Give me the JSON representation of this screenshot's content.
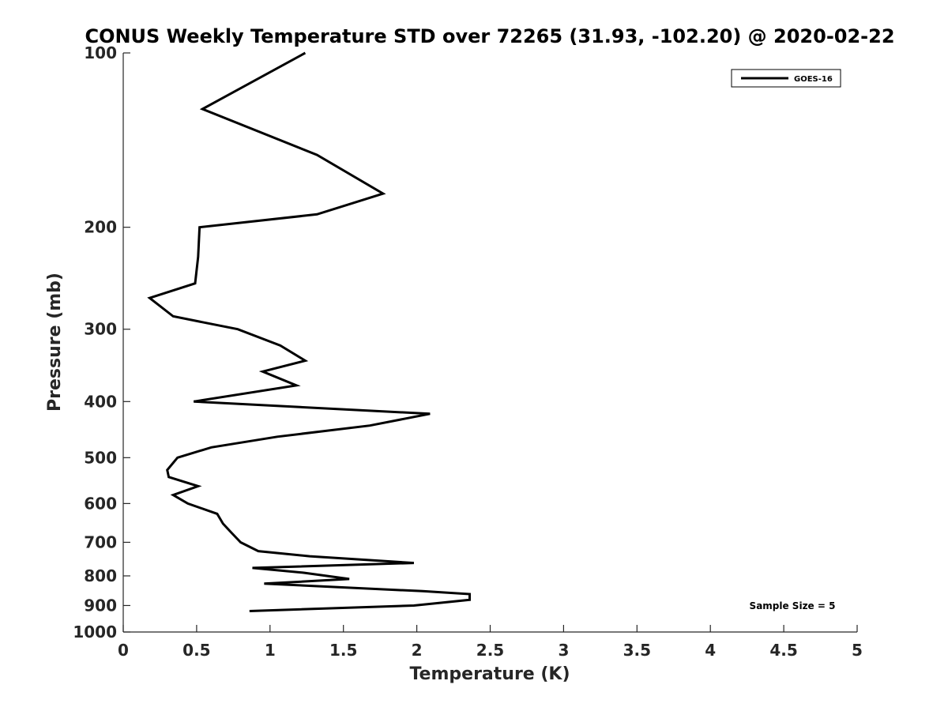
{
  "chart_data": {
    "type": "line",
    "title": "CONUS Weekly Temperature STD over 72265 (31.93, -102.20) @ 2020-02-22",
    "xlabel": "Temperature (K)",
    "ylabel": "Pressure (mb)",
    "xlim": [
      0,
      5
    ],
    "ylim": [
      100,
      1000
    ],
    "y_scale": "log",
    "y_reversed": true,
    "grid": false,
    "legend_position": "top-right",
    "x_ticks": [
      "0",
      "0.5",
      "1",
      "1.5",
      "2",
      "2.5",
      "3",
      "3.5",
      "4",
      "4.5",
      "5"
    ],
    "y_ticks": [
      "100",
      "200",
      "300",
      "400",
      "500",
      "600",
      "700",
      "800",
      "900",
      "1000"
    ],
    "annotation": "Sample Size = 5",
    "series": [
      {
        "name": "GOES-16",
        "color": "#000000",
        "points": [
          [
            1.24,
            100
          ],
          [
            0.54,
            125
          ],
          [
            1.32,
            150
          ],
          [
            1.77,
            175
          ],
          [
            1.32,
            190
          ],
          [
            0.52,
            200
          ],
          [
            0.51,
            225
          ],
          [
            0.49,
            250
          ],
          [
            0.18,
            265
          ],
          [
            0.34,
            285
          ],
          [
            0.78,
            300
          ],
          [
            1.07,
            320
          ],
          [
            1.24,
            340
          ],
          [
            0.95,
            355
          ],
          [
            1.18,
            375
          ],
          [
            0.48,
            400
          ],
          [
            2.09,
            420
          ],
          [
            1.68,
            440
          ],
          [
            1.05,
            460
          ],
          [
            0.6,
            480
          ],
          [
            0.37,
            500
          ],
          [
            0.3,
            525
          ],
          [
            0.31,
            540
          ],
          [
            0.51,
            560
          ],
          [
            0.34,
            580
          ],
          [
            0.44,
            600
          ],
          [
            0.64,
            625
          ],
          [
            0.68,
            650
          ],
          [
            0.74,
            675
          ],
          [
            0.8,
            700
          ],
          [
            0.92,
            725
          ],
          [
            1.27,
            740
          ],
          [
            1.98,
            760
          ],
          [
            0.88,
            775
          ],
          [
            1.23,
            790
          ],
          [
            1.54,
            810
          ],
          [
            0.96,
            825
          ],
          [
            2.04,
            850
          ],
          [
            2.36,
            860
          ],
          [
            2.36,
            880
          ],
          [
            1.98,
            900
          ],
          [
            0.86,
            920
          ]
        ]
      }
    ]
  }
}
